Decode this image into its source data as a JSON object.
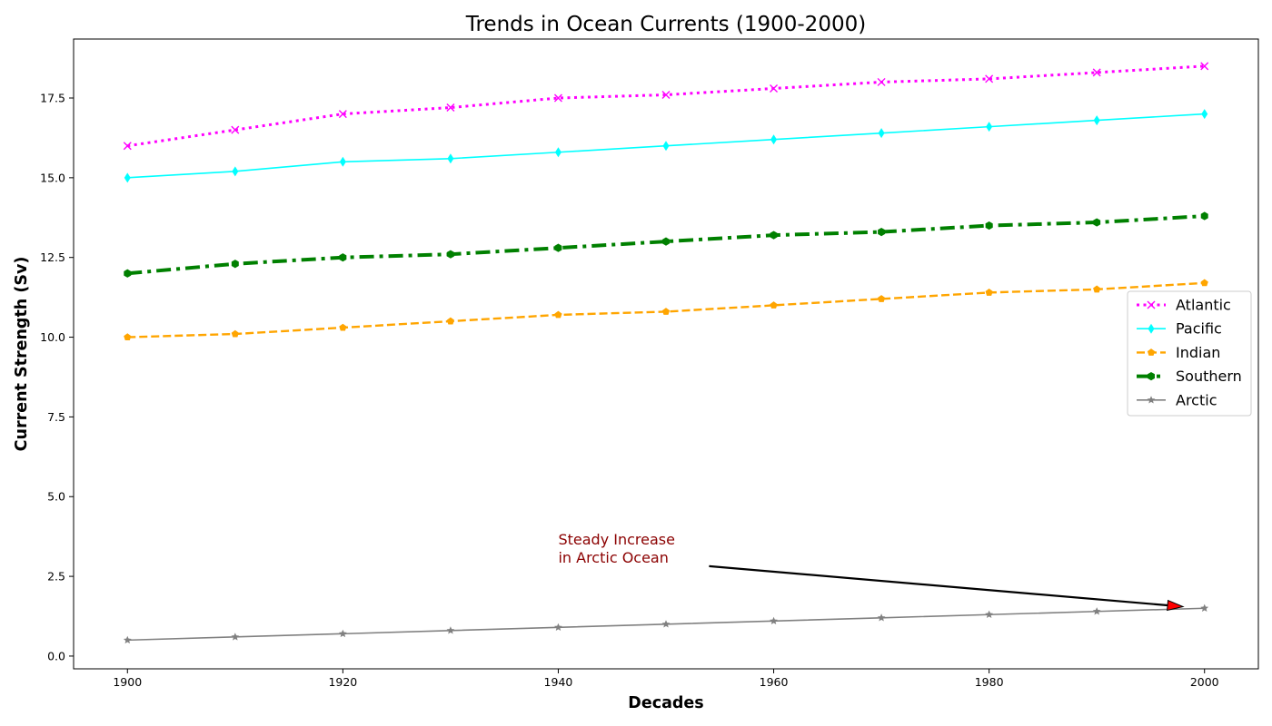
{
  "chart_data": {
    "type": "line",
    "title": "Trends in Ocean Currents (1900-2000)",
    "xlabel": "Decades",
    "ylabel": "Current Strength (Sv)",
    "xlim": [
      1895,
      2005
    ],
    "ylim": [
      -0.4,
      19.35
    ],
    "x_ticks": [
      1900,
      1920,
      1940,
      1960,
      1980,
      2000
    ],
    "y_ticks": [
      0.0,
      2.5,
      5.0,
      7.5,
      10.0,
      12.5,
      15.0,
      17.5
    ],
    "y_tick_labels": [
      "0.0",
      "2.5",
      "5.0",
      "7.5",
      "10.0",
      "12.5",
      "15.0",
      "17.5"
    ],
    "x": [
      1900,
      1910,
      1920,
      1930,
      1940,
      1950,
      1960,
      1970,
      1980,
      1990,
      2000
    ],
    "series": [
      {
        "name": "Atlantic",
        "values": [
          16.0,
          16.5,
          17.0,
          17.2,
          17.5,
          17.6,
          17.8,
          18.0,
          18.1,
          18.3,
          18.5
        ],
        "color": "#ff00ff",
        "linestyle": "dotted",
        "marker": "x"
      },
      {
        "name": "Pacific",
        "values": [
          15.0,
          15.2,
          15.5,
          15.6,
          15.8,
          16.0,
          16.2,
          16.4,
          16.6,
          16.8,
          17.0
        ],
        "color": "#00ffff",
        "linestyle": "solid",
        "marker": "thin_diamond"
      },
      {
        "name": "Indian",
        "values": [
          10.0,
          10.1,
          10.3,
          10.5,
          10.7,
          10.8,
          11.0,
          11.2,
          11.4,
          11.5,
          11.7
        ],
        "color": "#ffa500",
        "linestyle": "dashed",
        "marker": "pentagon"
      },
      {
        "name": "Southern",
        "values": [
          12.0,
          12.3,
          12.5,
          12.6,
          12.8,
          13.0,
          13.2,
          13.3,
          13.5,
          13.6,
          13.8
        ],
        "color": "#008000",
        "linestyle": "dashdot",
        "marker": "hexagon"
      },
      {
        "name": "Arctic",
        "values": [
          0.5,
          0.6,
          0.7,
          0.8,
          0.9,
          1.0,
          1.1,
          1.2,
          1.3,
          1.4,
          1.5
        ],
        "color": "#808080",
        "linestyle": "solid",
        "marker": "star"
      }
    ],
    "legend": {
      "position": "center-right"
    },
    "grid": false,
    "annotation": {
      "text_lines": [
        "Steady Increase",
        "in Arctic Ocean"
      ],
      "text_color": "#8b0000",
      "text_at": [
        1940,
        3.5
      ],
      "arrow_tail": [
        1954,
        2.82
      ],
      "arrow_head": [
        1998,
        1.55
      ],
      "arrow_head_color": "#ff0000"
    }
  }
}
